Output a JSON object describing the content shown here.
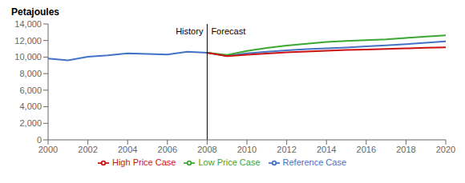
{
  "chart_data": {
    "type": "line",
    "title": "Petajoules",
    "x": [
      2000,
      2001,
      2002,
      2003,
      2004,
      2005,
      2006,
      2007,
      2008,
      2009,
      2010,
      2011,
      2012,
      2013,
      2014,
      2015,
      2016,
      2017,
      2018,
      2019,
      2020
    ],
    "series": [
      {
        "name": "Reference Case",
        "color": "#4472C4",
        "values": [
          9820,
          9600,
          10050,
          10200,
          10450,
          10380,
          10300,
          10650,
          10520,
          10150,
          10450,
          10650,
          10820,
          10950,
          11050,
          11150,
          11300,
          11420,
          11560,
          11720,
          11900
        ]
      },
      {
        "name": "Low Price Case",
        "color": "#3AA832",
        "values": [
          null,
          null,
          null,
          null,
          null,
          null,
          null,
          null,
          10520,
          10250,
          10750,
          11100,
          11400,
          11620,
          11820,
          11950,
          12050,
          12150,
          12320,
          12480,
          12620
        ]
      },
      {
        "name": "High Price Case",
        "color": "#CC1111",
        "values": [
          null,
          null,
          null,
          null,
          null,
          null,
          null,
          null,
          10520,
          10120,
          10280,
          10430,
          10570,
          10660,
          10760,
          10860,
          10920,
          10980,
          11050,
          11120,
          11180
        ]
      }
    ],
    "xlim": [
      2000,
      2020
    ],
    "xticks": [
      2000,
      2002,
      2004,
      2006,
      2008,
      2010,
      2012,
      2014,
      2016,
      2018,
      2020
    ],
    "ylim": [
      0,
      14000
    ],
    "yticks": [
      0,
      {
        "value": 2000,
        "label": "2,000"
      },
      {
        "value": 4000,
        "label": "4,000"
      },
      {
        "value": 6000,
        "label": "6,000"
      },
      {
        "value": 8000,
        "label": "8,000"
      },
      {
        "value": 10000,
        "label": "10,000"
      },
      {
        "value": 12000,
        "label": "12,000"
      },
      {
        "value": 14000,
        "label": "14,000"
      }
    ],
    "vlines": [
      2008
    ],
    "annotations": [
      {
        "text": "History",
        "x": 2008,
        "side": "left"
      },
      {
        "text": "Forecast",
        "x": 2008,
        "side": "right"
      }
    ],
    "grid": false,
    "legend": "bottom"
  }
}
